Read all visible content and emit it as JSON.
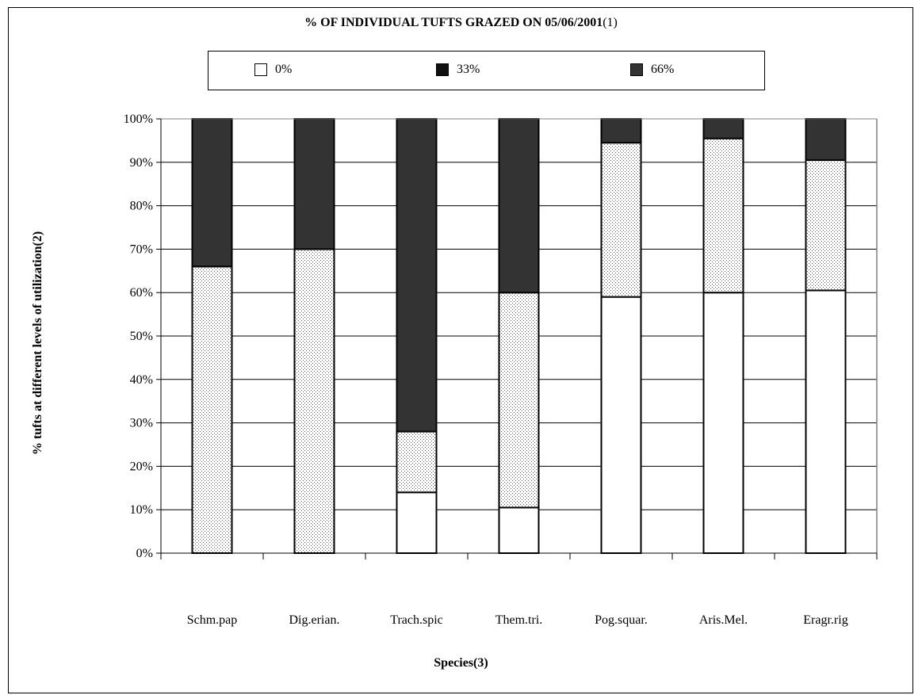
{
  "chart_data": {
    "type": "bar",
    "stacked": true,
    "title": "% OF INDIVIDUAL TUFTS GRAZED ON 05/06/2001",
    "title_suffix": "(1)",
    "xlabel": "Species(3)",
    "ylabel": "% tufts at different levels of utilization(2)",
    "categories": [
      "Schm.pap",
      "Dig.erian.",
      "Trach.spic",
      "Them.tri.",
      "Pog.squar.",
      "Aris.Mel.",
      "Eragr.rig"
    ],
    "yticks": [
      "0%",
      "10%",
      "20%",
      "30%",
      "40%",
      "50%",
      "60%",
      "70%",
      "80%",
      "90%",
      "100%"
    ],
    "ylim": [
      0,
      100
    ],
    "grid": true,
    "legend_position": "top",
    "legend": [
      "0%",
      "33%",
      "66%"
    ],
    "series": [
      {
        "name": "0%",
        "color": "#ffffff",
        "pattern": "none",
        "values": [
          0,
          0,
          14,
          10.5,
          59,
          60,
          60.5
        ]
      },
      {
        "name": "33%",
        "color": "#ffffff",
        "pattern": "dotted",
        "values": [
          66,
          70,
          14,
          49.5,
          35.5,
          35.5,
          30
        ]
      },
      {
        "name": "66%",
        "color": "#333333",
        "pattern": "none",
        "values": [
          34,
          30,
          72,
          40,
          5.5,
          4.5,
          9.5
        ]
      }
    ],
    "legend_swatch_colors": [
      "#ffffff",
      "#111111",
      "#333333"
    ]
  }
}
